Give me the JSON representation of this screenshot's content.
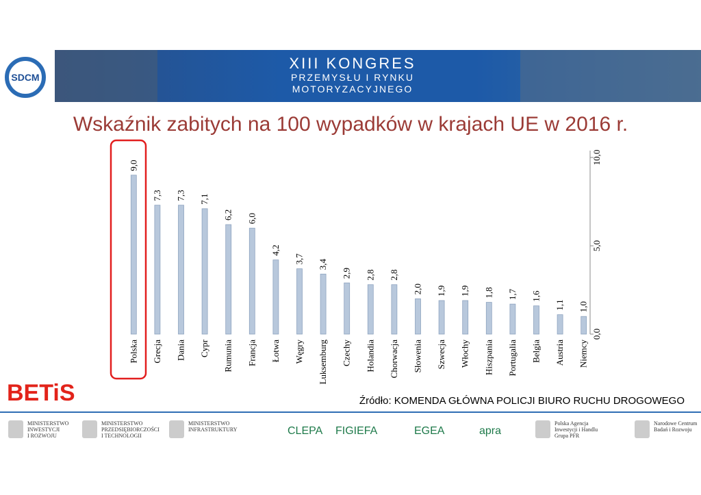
{
  "header": {
    "logo": "SDCM",
    "lines": [
      "XIII KONGRES",
      "PRZEMYSŁU I RYNKU",
      "MOTORYZACYJNEGO"
    ]
  },
  "chart_data": {
    "type": "bar",
    "title": "Wskaźnik zabitych na 100 wypadków w krajach UE w 2016 r.",
    "categories": [
      "Polska",
      "Grecja",
      "Dania",
      "Cypr",
      "Rumunia",
      "Francja",
      "Łotwa",
      "Węgry",
      "Luksemburg",
      "Czechy",
      "Holandia",
      "Chorwacja",
      "Słowenia",
      "Szwecja",
      "Włochy",
      "Hiszpania",
      "Portugalia",
      "Belgia",
      "Austria",
      "Niemcy"
    ],
    "values": [
      9.0,
      7.3,
      7.3,
      7.1,
      6.2,
      6.0,
      4.2,
      3.7,
      3.4,
      2.9,
      2.8,
      2.8,
      2.0,
      1.9,
      1.9,
      1.8,
      1.7,
      1.6,
      1.1,
      1.0
    ],
    "value_labels": [
      "9,0",
      "7,3",
      "7,3",
      "7,1",
      "6,2",
      "6,0",
      "4,2",
      "3,7",
      "3,4",
      "2,9",
      "2,8",
      "2,8",
      "2,0",
      "1,9",
      "1,9",
      "1,8",
      "1,7",
      "1,6",
      "1,1",
      "1,0"
    ],
    "color": "#b8c8dc",
    "ylim": [
      0,
      10
    ],
    "yticks": [
      {
        "value": 0,
        "label": "0,0"
      },
      {
        "value": 5,
        "label": "5,0"
      },
      {
        "value": 10,
        "label": "10,0"
      }
    ],
    "y_axis_side": "right"
  },
  "footer": {
    "brand": "BETiS",
    "source": "Źródło: KOMENDA GŁÓWNA POLICJI BIURO RUCHU DROGOWEGO",
    "logos": [
      [
        "MINISTERSTWO",
        "INWESTYCJI",
        "I ROZWOJU"
      ],
      [
        "MINISTERSTWO",
        "PRZEDSIĘBIORCZOŚCI",
        "I TECHNOLOGII"
      ],
      [
        "MINISTERSTWO",
        "INFRASTRUKTURY"
      ],
      [
        "CLEPA"
      ],
      [
        "FIGIEFA"
      ],
      [
        "EGEA"
      ],
      [
        "apra"
      ],
      [
        "Polska Agencja",
        "Inwestycji i Handlu",
        "Grupa PFR"
      ],
      [
        "Narodowe Centrum",
        "Badań i Rozwoju"
      ]
    ]
  }
}
